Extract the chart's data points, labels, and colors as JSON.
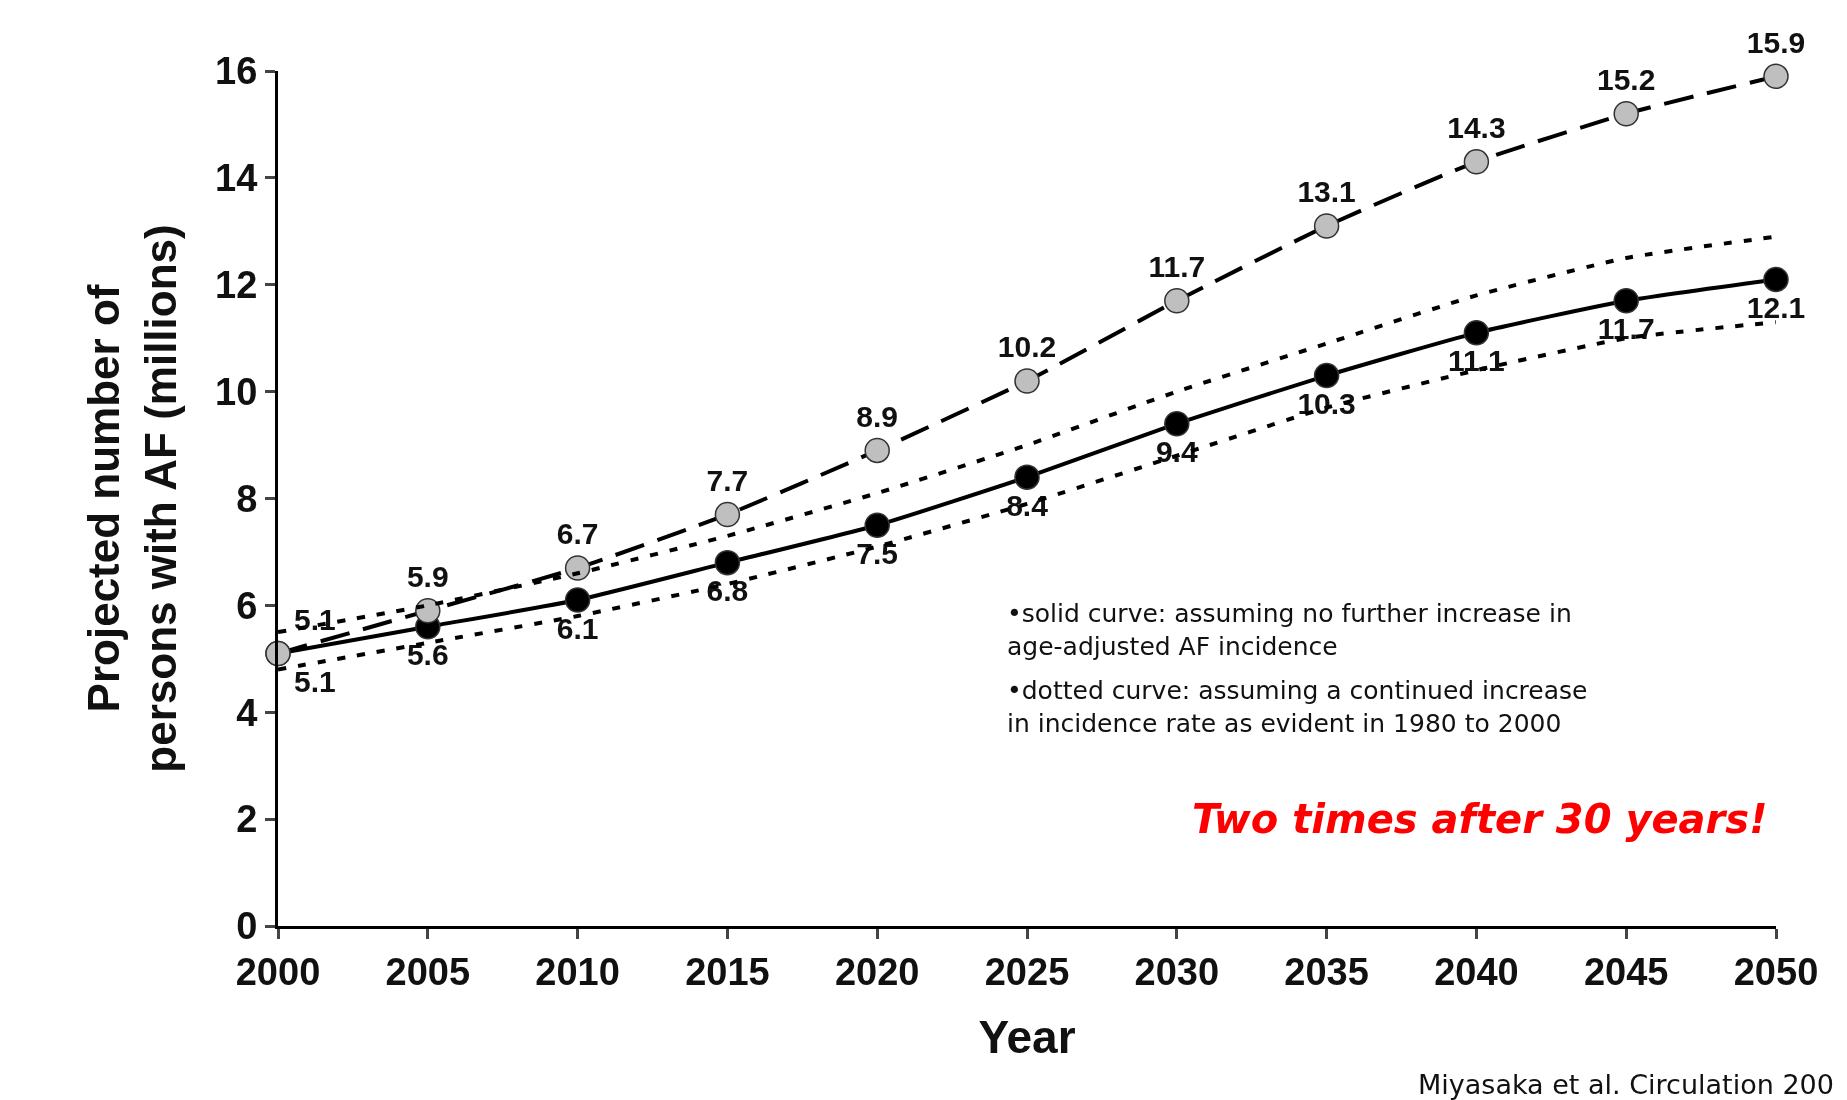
{
  "chart_data": {
    "type": "line",
    "xlabel": "Year",
    "ylabel": "Projected number of\npersons with AF (millions)",
    "x": [
      2000,
      2005,
      2010,
      2015,
      2020,
      2025,
      2030,
      2035,
      2040,
      2045,
      2050
    ],
    "xlim": [
      2000,
      2050
    ],
    "xticks": [
      2000,
      2005,
      2010,
      2015,
      2020,
      2025,
      2030,
      2035,
      2040,
      2045,
      2050
    ],
    "ylim": [
      0,
      16
    ],
    "yticks": [
      0,
      2,
      4,
      6,
      8,
      10,
      12,
      14,
      16
    ],
    "grid": false,
    "series": [
      {
        "color": "#000000",
        "marker": "none",
        "line_style": "dotted",
        "values": [
          5.5,
          6.0,
          6.6,
          7.3,
          8.1,
          9.0,
          10.0,
          10.9,
          11.8,
          12.5,
          12.9
        ]
      },
      {
        "color": "#000000",
        "marker": "none",
        "line_style": "dotted",
        "values": [
          4.8,
          5.3,
          5.8,
          6.4,
          7.1,
          7.9,
          8.8,
          9.7,
          10.4,
          11.0,
          11.3
        ]
      },
      {
        "color": "#000000",
        "marker": "circle",
        "line_style": "solid",
        "values": [
          5.1,
          5.6,
          6.1,
          6.8,
          7.5,
          8.4,
          9.4,
          10.3,
          11.1,
          11.7,
          12.1
        ],
        "value_labels": [
          "5.1",
          "5.6",
          "6.1",
          "6.8",
          "7.5",
          "8.4",
          "9.4",
          "10.3",
          "11.1",
          "11.7",
          "12.1"
        ]
      },
      {
        "color": "#bfbfbf",
        "marker": "circle",
        "line_style": "dashed",
        "values": [
          5.1,
          5.9,
          6.7,
          7.7,
          8.9,
          10.2,
          11.7,
          13.1,
          14.3,
          15.2,
          15.9
        ],
        "value_labels": [
          "5.1",
          "5.9",
          "6.7",
          "7.7",
          "8.9",
          "10.2",
          "11.7",
          "13.1",
          "14.3",
          "15.2",
          "15.9"
        ]
      }
    ],
    "annotations": [
      "•solid curve: assuming no further increase in age-adjusted AF incidence",
      "•dotted curve: assuming a continued increase in incidence rate as evident in 1980 to 2000",
      "Two times after 30 years!",
      "Miyasaka et al. Circulation 200"
    ]
  }
}
